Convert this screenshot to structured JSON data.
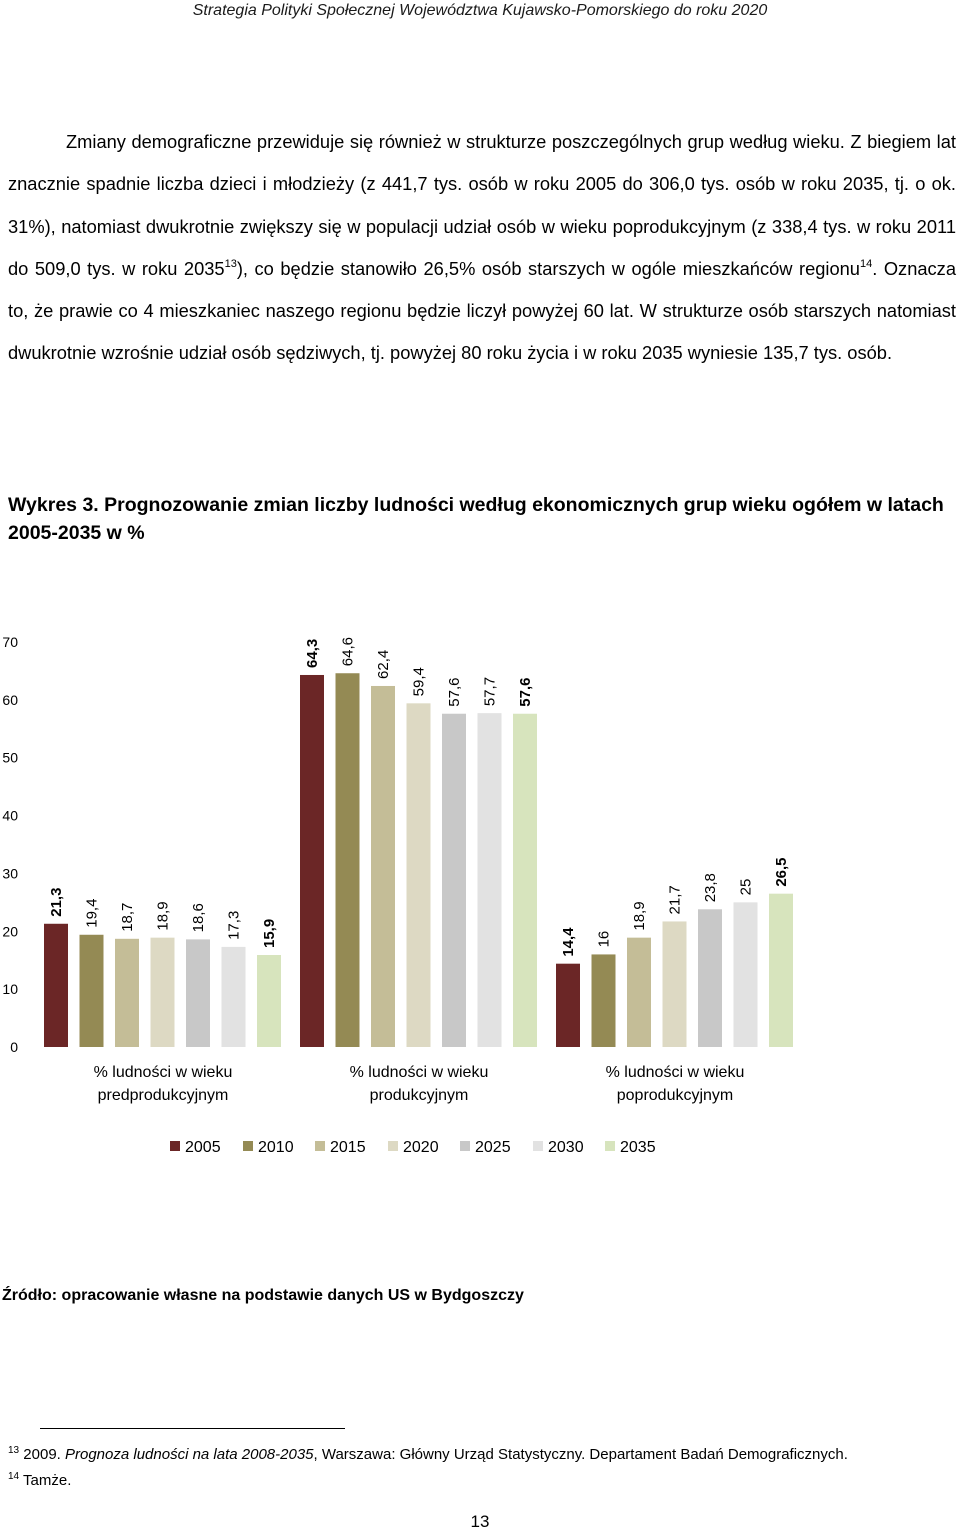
{
  "header": {
    "title": "Strategia Polityki Społecznej Województwa Kujawsko-Pomorskiego do roku 2020"
  },
  "paragraph": {
    "part1": "Zmiany demograficzne przewiduje się również w strukturze poszczególnych grup według wieku. Z biegiem lat znacznie spadnie liczba dzieci i młodzieży (z 441,7 tys. osób w roku 2005 do 306,0 tys. osób w roku 2035, tj. o ok. 31%), natomiast dwukrotnie zwiększy się w populacji udział osób w wieku poprodukcyjnym (z 338,4 tys. w roku 2011 do 509,0 tys. w roku 2035",
    "ref1": "13",
    "part2": "), co będzie stanowiło 26,5% osób starszych w ogóle mieszkańców regionu",
    "ref2": "14",
    "part3": ". Oznacza to, że prawie co 4 mieszkaniec naszego regionu będzie liczył powyżej 60 lat. W strukturze osób starszych natomiast dwukrotnie wzrośnie udział osób sędziwych, tj. powyżej 80 roku życia i w roku 2035 wyniesie 135,7 tys. osób."
  },
  "caption": {
    "label": "Wykres 3.",
    "text": " Prognozowanie zmian liczby ludności według ekonomicznych grup wieku ogółem w latach 2005-2035 w %"
  },
  "chart_data": {
    "type": "bar",
    "categories": [
      "% ludności w wieku\npredprodukcyjnym",
      "% ludności w wieku\nprodukcyjnym",
      "% ludności w wieku\npoprodukcyjnym"
    ],
    "series": [
      {
        "name": "2005",
        "color": "#6b2626",
        "values": [
          21.3,
          64.3,
          14.4
        ],
        "labels": [
          "21,3",
          "64,3",
          "14,4"
        ],
        "bold": true
      },
      {
        "name": "2010",
        "color": "#948a54",
        "values": [
          19.4,
          64.6,
          16
        ],
        "labels": [
          "19,4",
          "64,6",
          "16"
        ]
      },
      {
        "name": "2015",
        "color": "#c4bd97",
        "values": [
          18.7,
          62.4,
          18.9
        ],
        "labels": [
          "18,7",
          "62,4",
          "18,9"
        ]
      },
      {
        "name": "2020",
        "color": "#ddd9c3",
        "values": [
          18.9,
          59.4,
          21.7
        ],
        "labels": [
          "18,9",
          "59,4",
          "21,7"
        ]
      },
      {
        "name": "2025",
        "color": "#c8c8c8",
        "values": [
          18.6,
          57.6,
          23.8
        ],
        "labels": [
          "18,6",
          "57,6",
          "23,8"
        ]
      },
      {
        "name": "2030",
        "color": "#e2e2e2",
        "values": [
          17.3,
          57.7,
          25
        ],
        "labels": [
          "17,3",
          "57,7",
          "25"
        ]
      },
      {
        "name": "2035",
        "color": "#d7e4bd",
        "values": [
          15.9,
          57.6,
          26.5
        ],
        "labels": [
          "15,9",
          "57,6",
          "26,5"
        ],
        "bold": true
      }
    ],
    "ylim": [
      0,
      70
    ],
    "yticks": [
      "0",
      "10",
      "20",
      "30",
      "40",
      "50",
      "60",
      "70"
    ],
    "legend": "bottom",
    "grid": false
  },
  "source": "Źródło: opracowanie własne na podstawie danych US w Bydgoszczy",
  "footnotes": {
    "fn13_num": "13",
    "fn13_pre": " 2009. ",
    "fn13_italic": "Prognoza ludności na lata 2008-2035",
    "fn13_post": ", Warszawa: Główny Urząd Statystyczny. Departament Badań Demograficznych.",
    "fn14_num": "14",
    "fn14_text": " Tamże."
  },
  "page_number": "13"
}
